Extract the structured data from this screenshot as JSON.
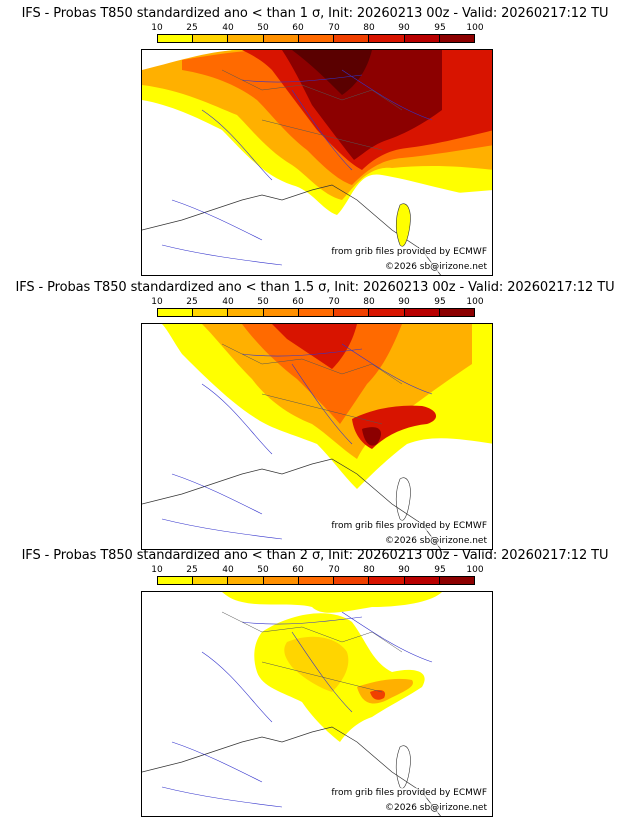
{
  "colorbar": {
    "ticks": [
      "10",
      "25",
      "40",
      "50",
      "60",
      "70",
      "80",
      "90",
      "95",
      "100"
    ],
    "colors": [
      "#ffff00",
      "#ffd500",
      "#ffb000",
      "#ff9000",
      "#ff6a00",
      "#f04000",
      "#d81400",
      "#b80000",
      "#8c0000",
      "#5a0000"
    ]
  },
  "credits": {
    "source": "from grib files provided by ECMWF",
    "copyright": "©2026 sb@irizone.net"
  },
  "panels": [
    {
      "title": "IFS - Probas T850  standardized ano < than 1 σ, Init: 20260213 00z - Valid: 20260217:12 TU"
    },
    {
      "title": "IFS - Probas T850  standardized ano < than 1.5 σ, Init: 20260213 00z - Valid: 20260217:12 TU"
    },
    {
      "title": "IFS - Probas T850  standardized ano < than 2 σ, Init: 20260213 00z - Valid: 20260217:12 TU"
    }
  ]
}
